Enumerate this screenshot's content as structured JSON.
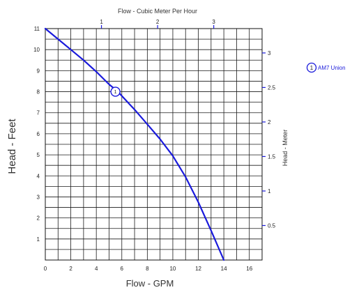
{
  "chart_data": {
    "type": "line",
    "title": "",
    "xlabel": "Flow - GPM",
    "ylabel": "Head - Feet",
    "x2label": "Flow - Cubic Meter Per Hour",
    "y2label": "Head - Meter",
    "xlim": [
      0,
      17
    ],
    "ylim": [
      0,
      11
    ],
    "x2lim": [
      0,
      3.861
    ],
    "y2lim": [
      0,
      3.3528
    ],
    "x_ticks": [
      2,
      4,
      6,
      8,
      10,
      12,
      14,
      16
    ],
    "y_ticks": [
      1,
      2,
      3,
      4,
      5,
      6,
      7,
      8,
      9,
      10,
      11
    ],
    "x2_ticks": [
      1,
      2,
      3
    ],
    "y2_ticks": [
      0.5,
      1,
      1.5,
      2,
      2.5,
      3
    ],
    "origin_label": "0",
    "grid": true,
    "series": [
      {
        "name": "AM7 Union",
        "color": "#1a1adb",
        "x": [
          0,
          1,
          2,
          3,
          4,
          5,
          5.7,
          6,
          7,
          8,
          9,
          10,
          11,
          12,
          13,
          14
        ],
        "y": [
          11,
          10.5,
          10.0,
          9.5,
          8.95,
          8.35,
          8.0,
          7.8,
          7.15,
          6.45,
          5.75,
          4.95,
          3.95,
          2.75,
          1.4,
          0
        ]
      }
    ],
    "markers": [
      {
        "label": "1",
        "x": 5.5,
        "y": 8.0
      }
    ],
    "legend": {
      "position": "top-right",
      "marker_label": "1",
      "entry": "AM7 Union"
    }
  }
}
